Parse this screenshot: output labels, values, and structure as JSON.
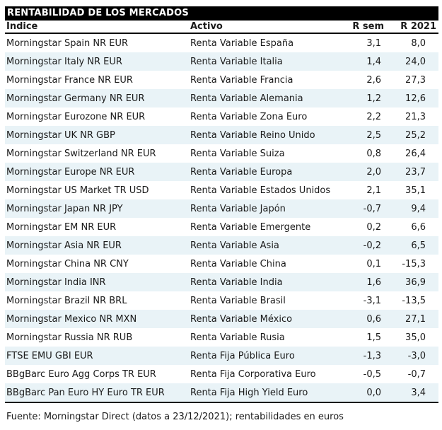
{
  "title": "RENTABILIDAD DE LOS MERCADOS",
  "chart_data": {
    "type": "table",
    "title": "RENTABILIDAD DE LOS MERCADOS",
    "columns": [
      "Índice",
      "Activo",
      "R sem",
      "R 2021"
    ],
    "rows": [
      {
        "indice": "Morningstar Spain NR EUR",
        "activo": "Renta Variable España",
        "r_sem": "3,1",
        "r_2021": "8,0"
      },
      {
        "indice": "Morningstar Italy NR EUR",
        "activo": "Renta Variable Italia",
        "r_sem": "1,4",
        "r_2021": "24,0"
      },
      {
        "indice": "Morningstar France NR EUR",
        "activo": "Renta Variable Francia",
        "r_sem": "2,6",
        "r_2021": "27,3"
      },
      {
        "indice": "Morningstar Germany NR EUR",
        "activo": "Renta Variable Alemania",
        "r_sem": "1,2",
        "r_2021": "12,6"
      },
      {
        "indice": "Morningstar Eurozone NR EUR",
        "activo": "Renta Variable Zona Euro",
        "r_sem": "2,2",
        "r_2021": "21,3"
      },
      {
        "indice": "Morningstar UK NR GBP",
        "activo": "Renta Variable Reino Unido",
        "r_sem": "2,5",
        "r_2021": "25,2"
      },
      {
        "indice": "Morningstar Switzerland NR EUR",
        "activo": "Renta Variable Suiza",
        "r_sem": "0,8",
        "r_2021": "26,4"
      },
      {
        "indice": "Morningstar Europe NR EUR",
        "activo": "Renta Variable Europa",
        "r_sem": "2,0",
        "r_2021": "23,7"
      },
      {
        "indice": "Morningstar US Market TR USD",
        "activo": "Renta Variable Estados Unidos",
        "r_sem": "2,1",
        "r_2021": "35,1"
      },
      {
        "indice": "Morningstar Japan NR JPY",
        "activo": "Renta Variable Japón",
        "r_sem": "-0,7",
        "r_2021": "9,4"
      },
      {
        "indice": "Morningstar EM NR EUR",
        "activo": "Renta Variable Emergente",
        "r_sem": "0,2",
        "r_2021": "6,6"
      },
      {
        "indice": "Morningstar Asia NR EUR",
        "activo": "Renta Variable Asia",
        "r_sem": "-0,2",
        "r_2021": "6,5"
      },
      {
        "indice": "Morningstar China NR CNY",
        "activo": "Renta Variable China",
        "r_sem": "0,1",
        "r_2021": "-15,3"
      },
      {
        "indice": "Morningstar India INR",
        "activo": "Renta Variable India",
        "r_sem": "1,6",
        "r_2021": "36,9"
      },
      {
        "indice": "Morningstar Brazil NR BRL",
        "activo": "Renta Variable Brasil",
        "r_sem": "-3,1",
        "r_2021": "-13,5"
      },
      {
        "indice": "Morningstar Mexico NR MXN",
        "activo": "Renta Variable México",
        "r_sem": "0,6",
        "r_2021": "27,1"
      },
      {
        "indice": "Morningstar Russia NR RUB",
        "activo": "Renta Variable Rusia",
        "r_sem": "1,5",
        "r_2021": "35,0"
      },
      {
        "indice": "FTSE EMU GBI EUR",
        "activo": "Renta Fija Pública Euro",
        "r_sem": "-1,3",
        "r_2021": "-3,0"
      },
      {
        "indice": "BBgBarc Euro Agg Corps TR EUR",
        "activo": "Renta Fija Corporativa Euro",
        "r_sem": "-0,5",
        "r_2021": "-0,7"
      },
      {
        "indice": "BBgBarc Pan Euro HY Euro TR EUR",
        "activo": "Renta Fija High Yield Euro",
        "r_sem": "0,0",
        "r_2021": "3,4"
      }
    ],
    "footnote": "Fuente: Morningstar Direct (datos a 23/12/2021); rentabilidades en euros"
  },
  "colors": {
    "title_bg": "#000000",
    "title_text": "#ffffff",
    "alt_row_bg": "#e9f3f7",
    "body_text": "#1a1a1a",
    "rule": "#000000"
  }
}
